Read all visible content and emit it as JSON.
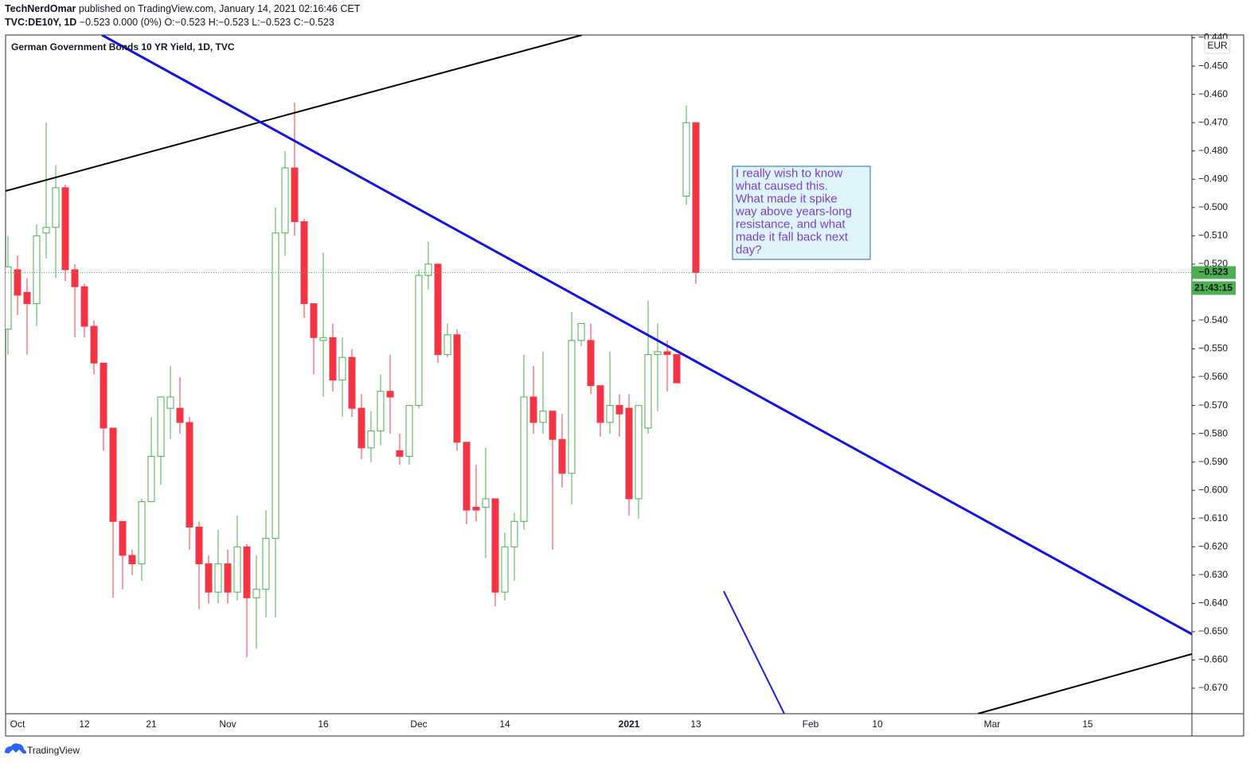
{
  "header": {
    "author": "TechNerdOmar",
    "published": " published on TradingView.com, January 14, 2021 02:16:46 CET",
    "symbol": "TVC:DE10Y, 1D",
    "ohlc": " −0.523 0.000 (0%) O:−0.523 H:−0.523 L:−0.523 C:−0.523"
  },
  "footer": "TradingView",
  "chart_data": {
    "type": "candlestick",
    "title": "German Government Bonds 10 YR Yield, 1D, TVC",
    "currency": "EUR",
    "up_color": "#4caf50",
    "down_color": "#f23645",
    "annotation": [
      "I really wish to know",
      "what caused this.",
      "What made it spike",
      "way above years-long",
      "resistance, and what",
      "made it fall back next",
      "day?"
    ],
    "last_price": {
      "value": -0.523,
      "label": "−0.523"
    },
    "countdown": "21:43:15",
    "categories": [
      null,
      "Oct",
      null,
      null,
      null,
      null,
      null,
      null,
      "12",
      null,
      null,
      null,
      null,
      null,
      null,
      "21",
      null,
      null,
      null,
      null,
      null,
      null,
      null,
      "Nov",
      null,
      null,
      null,
      null,
      null,
      null,
      null,
      null,
      null,
      "16",
      null,
      null,
      null,
      null,
      null,
      null,
      null,
      null,
      null,
      "Dec",
      null,
      null,
      null,
      null,
      null,
      null,
      null,
      null,
      "14",
      null,
      null,
      null,
      null,
      null,
      null,
      null,
      null,
      null,
      null,
      null,
      null,
      "2021",
      null,
      null,
      null,
      null,
      null,
      null,
      "13",
      null,
      null,
      null,
      null,
      null,
      null,
      null,
      null,
      null,
      null,
      null,
      "Feb",
      null,
      null,
      null,
      null,
      null,
      null,
      "10",
      null,
      null,
      null,
      null,
      null,
      null,
      null,
      null,
      null,
      null,
      null,
      "Mar",
      null,
      null,
      null,
      null,
      null,
      null,
      null,
      null,
      null,
      "15",
      null,
      null,
      null,
      null,
      null,
      null,
      null,
      null,
      null,
      null,
      null
    ],
    "open": [
      -0.543,
      -0.522,
      -0.53,
      -0.534,
      -0.509,
      -0.507,
      -0.493,
      -0.522,
      -0.528,
      -0.542,
      -0.555,
      -0.578,
      -0.611,
      -0.623,
      -0.626,
      -0.604,
      -0.588,
      -0.571,
      -0.571,
      -0.576,
      -0.613,
      -0.626,
      -0.636,
      -0.626,
      -0.636,
      -0.62,
      -0.638,
      -0.635,
      -0.617,
      -0.509,
      -0.486,
      -0.505,
      -0.534,
      -0.547,
      -0.546,
      -0.561,
      -0.553,
      -0.571,
      -0.585,
      -0.579,
      -0.565,
      -0.586,
      -0.588,
      -0.57,
      -0.524,
      -0.52,
      -0.552,
      -0.545,
      -0.583,
      -0.606,
      -0.606,
      -0.603,
      -0.636,
      -0.62,
      -0.611,
      -0.567,
      -0.576,
      -0.572,
      -0.582,
      -0.594,
      -0.547,
      -0.547,
      -0.563,
      -0.576,
      -0.57,
      -0.571,
      -0.603,
      -0.578,
      -0.552,
      -0.551,
      -0.552,
      -0.496,
      -0.47,
      null,
      null,
      null,
      null,
      null,
      null,
      null,
      null,
      null,
      null,
      null,
      null,
      null,
      null,
      null,
      null,
      null,
      null,
      null,
      null,
      null,
      null,
      null,
      null,
      null,
      null,
      null,
      null,
      null,
      null,
      null,
      null,
      null,
      null,
      null,
      null,
      null,
      null,
      null,
      null,
      null,
      null,
      null,
      null,
      null,
      null,
      null,
      null,
      null,
      null,
      null,
      null
    ],
    "high": [
      -0.51,
      -0.517,
      -0.525,
      -0.506,
      -0.47,
      -0.485,
      -0.492,
      -0.52,
      -0.527,
      -0.54,
      -0.555,
      -0.578,
      -0.611,
      -0.621,
      -0.603,
      -0.574,
      -0.567,
      -0.556,
      -0.56,
      -0.574,
      -0.611,
      -0.623,
      -0.614,
      -0.621,
      -0.609,
      -0.619,
      -0.623,
      -0.607,
      -0.5,
      -0.48,
      -0.463,
      -0.504,
      -0.534,
      -0.516,
      -0.541,
      -0.546,
      -0.55,
      -0.566,
      -0.572,
      -0.559,
      -0.552,
      -0.58,
      -0.57,
      -0.522,
      -0.512,
      -0.52,
      -0.541,
      -0.543,
      -0.583,
      -0.591,
      -0.585,
      -0.603,
      -0.615,
      -0.608,
      -0.552,
      -0.556,
      -0.551,
      -0.572,
      -0.573,
      -0.537,
      -0.541,
      -0.541,
      -0.563,
      -0.551,
      -0.566,
      -0.566,
      -0.57,
      -0.533,
      -0.541,
      -0.547,
      -0.552,
      -0.464,
      -0.47,
      null,
      null,
      null,
      null,
      null,
      null,
      null,
      null,
      null,
      null,
      null,
      null,
      null,
      null,
      null,
      null,
      null,
      null,
      null,
      null,
      null,
      null,
      null,
      null,
      null,
      null,
      null,
      null,
      null,
      null,
      null,
      null,
      null,
      null,
      null,
      null,
      null,
      null,
      null,
      null,
      null,
      null,
      null,
      null,
      null,
      null,
      null,
      null,
      null,
      null,
      null,
      null
    ],
    "low": [
      -0.552,
      -0.538,
      -0.552,
      -0.542,
      -0.518,
      -0.525,
      -0.526,
      -0.546,
      -0.546,
      -0.559,
      -0.586,
      -0.638,
      -0.635,
      -0.63,
      -0.632,
      -0.604,
      -0.598,
      -0.582,
      -0.58,
      -0.621,
      -0.642,
      -0.64,
      -0.64,
      -0.64,
      -0.639,
      -0.659,
      -0.656,
      -0.645,
      -0.645,
      -0.517,
      -0.51,
      -0.539,
      -0.559,
      -0.567,
      -0.565,
      -0.574,
      -0.574,
      -0.589,
      -0.59,
      -0.584,
      -0.58,
      -0.591,
      -0.591,
      -0.571,
      -0.529,
      -0.555,
      -0.553,
      -0.586,
      -0.612,
      -0.611,
      -0.624,
      -0.641,
      -0.639,
      -0.632,
      -0.614,
      -0.58,
      -0.58,
      -0.621,
      -0.599,
      -0.605,
      -0.549,
      -0.566,
      -0.581,
      -0.58,
      -0.581,
      -0.609,
      -0.61,
      -0.58,
      -0.572,
      -0.565,
      -0.562,
      -0.499,
      -0.527,
      null,
      null,
      null,
      null,
      null,
      null,
      null,
      null,
      null,
      null,
      null,
      null,
      null,
      null,
      null,
      null,
      null,
      null,
      null,
      null,
      null,
      null,
      null,
      null,
      null,
      null,
      null,
      null,
      null,
      null,
      null,
      null,
      null,
      null,
      null,
      null,
      null,
      null,
      null,
      null,
      null,
      null,
      null,
      null,
      null,
      null,
      null,
      null,
      null,
      null,
      null,
      null
    ],
    "close": [
      -0.521,
      -0.531,
      -0.534,
      -0.51,
      -0.507,
      -0.493,
      -0.522,
      -0.528,
      -0.542,
      -0.555,
      -0.578,
      -0.611,
      -0.623,
      -0.626,
      -0.604,
      -0.588,
      -0.567,
      -0.567,
      -0.576,
      -0.613,
      -0.626,
      -0.636,
      -0.626,
      -0.636,
      -0.62,
      -0.638,
      -0.635,
      -0.617,
      -0.509,
      -0.486,
      -0.505,
      -0.534,
      -0.546,
      -0.546,
      -0.561,
      -0.553,
      -0.571,
      -0.585,
      -0.579,
      -0.565,
      -0.567,
      -0.588,
      -0.57,
      -0.524,
      -0.52,
      -0.552,
      -0.545,
      -0.583,
      -0.607,
      -0.607,
      -0.603,
      -0.636,
      -0.62,
      -0.611,
      -0.567,
      -0.576,
      -0.572,
      -0.582,
      -0.594,
      -0.547,
      -0.541,
      -0.563,
      -0.576,
      -0.57,
      -0.573,
      -0.603,
      -0.57,
      -0.552,
      -0.551,
      -0.552,
      -0.562,
      -0.47,
      -0.523,
      null,
      null,
      null,
      null,
      null,
      null,
      null,
      null,
      null,
      null,
      null,
      null,
      null,
      null,
      null,
      null,
      null,
      null,
      null,
      null,
      null,
      null,
      null,
      null,
      null,
      null,
      null,
      null,
      null,
      null,
      null,
      null,
      null,
      null,
      null,
      null,
      null,
      null,
      null,
      null,
      null,
      null,
      null,
      null,
      null,
      null,
      null,
      null,
      null,
      null,
      null,
      null
    ],
    "ylim": [
      -0.679,
      -0.439
    ],
    "yticks": [
      {
        "value": -0.44,
        "label": "−0.440"
      },
      {
        "value": -0.45,
        "label": "−0.450"
      },
      {
        "value": -0.46,
        "label": "−0.460"
      },
      {
        "value": -0.47,
        "label": "−0.470"
      },
      {
        "value": -0.48,
        "label": "−0.480"
      },
      {
        "value": -0.49,
        "label": "−0.490"
      },
      {
        "value": -0.5,
        "label": "−0.500"
      },
      {
        "value": -0.51,
        "label": "−0.510"
      },
      {
        "value": -0.52,
        "label": "−0.520"
      },
      {
        "value": -0.53,
        "label": "−0.530"
      },
      {
        "value": -0.54,
        "label": "−0.540"
      },
      {
        "value": -0.55,
        "label": "−0.550"
      },
      {
        "value": -0.56,
        "label": "−0.560"
      },
      {
        "value": -0.57,
        "label": "−0.570"
      },
      {
        "value": -0.58,
        "label": "−0.580"
      },
      {
        "value": -0.59,
        "label": "−0.590"
      },
      {
        "value": -0.6,
        "label": "−0.600"
      },
      {
        "value": -0.61,
        "label": "−0.610"
      },
      {
        "value": -0.62,
        "label": "−0.620"
      },
      {
        "value": -0.63,
        "label": "−0.630"
      },
      {
        "value": -0.64,
        "label": "−0.640"
      },
      {
        "value": -0.65,
        "label": "−0.650"
      },
      {
        "value": -0.66,
        "label": "−0.660"
      },
      {
        "value": -0.67,
        "label": "−0.670"
      }
    ]
  }
}
